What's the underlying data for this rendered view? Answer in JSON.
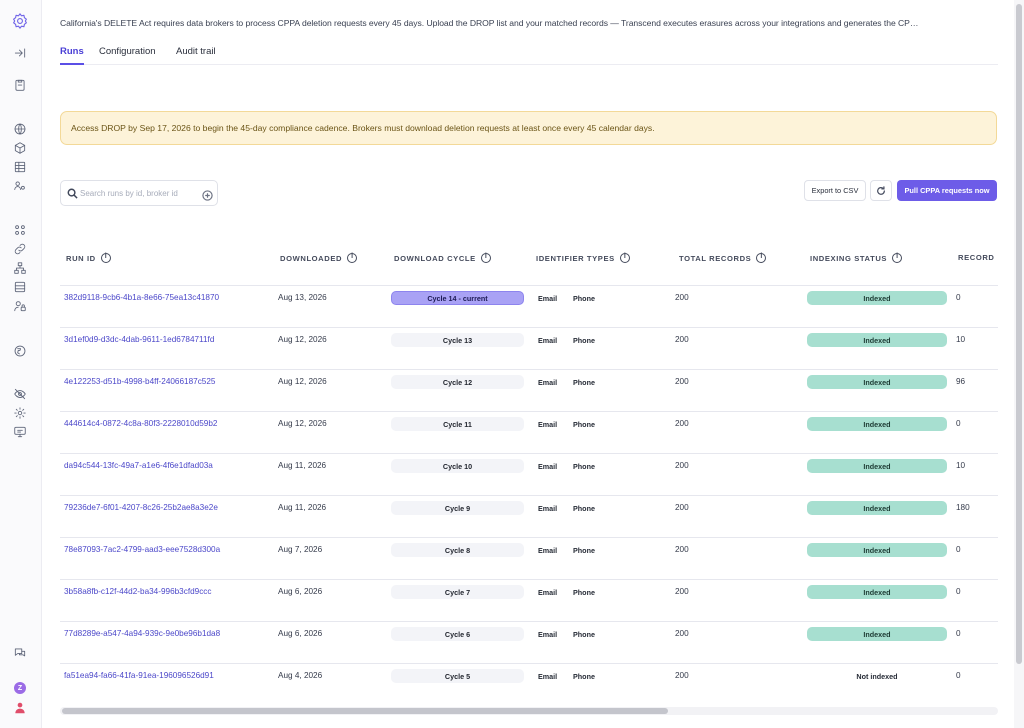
{
  "description": "California's DELETE Act requires data brokers to process CPPA deletion requests every 45 days. Upload the DROP list and your matched records — Transcend executes erasures across your integrations and generates the CP…",
  "tabs": [
    {
      "label": "Runs",
      "active": true
    },
    {
      "label": "Configuration",
      "active": false
    },
    {
      "label": "Audit trail",
      "active": false
    }
  ],
  "banner": "Access DROP by Sep 17, 2026 to begin the 45-day compliance cadence. Brokers must download deletion requests at least once every 45 calendar days.",
  "search": {
    "placeholder": "Search runs by id, broker id"
  },
  "actions": {
    "export_label": "Export to CSV",
    "pull_label": "Pull CPPA requests now"
  },
  "colors": {
    "accent": "#6d5ce8",
    "indexed": "#a7dfd0",
    "current_cycle": "#a9a2f5",
    "banner_bg": "#fdf3d9"
  },
  "sidebar_icons": [
    "settings-icon",
    "share-icon",
    "clipboard-icon",
    "globe-icon",
    "box-icon",
    "table-icon",
    "settings-people-icon",
    "grid-icon",
    "link-icon",
    "network-icon",
    "database-icon",
    "user-lock-icon",
    "globe-lock-icon",
    "eye-off-icon",
    "gear-icon",
    "monitor-icon",
    "chat-icon"
  ],
  "user_avatar": "Z",
  "table": {
    "columns": [
      "RUN ID",
      "DOWNLOADED",
      "DOWNLOAD CYCLE",
      "IDENTIFIER TYPES",
      "TOTAL RECORDS",
      "INDEXING STATUS",
      "RECORD"
    ],
    "rows": [
      {
        "id": "382d9118-9cb6-4b1a-8e66-75ea13c41870",
        "downloaded": "Aug 13, 2026",
        "cycle": "Cycle 14 - current",
        "current": true,
        "id_type_1": "Email",
        "id_type_2": "Phone",
        "total": "200",
        "status": "Indexed",
        "records": "0"
      },
      {
        "id": "3d1ef0d9-d3dc-4dab-9611-1ed6784711fd",
        "downloaded": "Aug 12, 2026",
        "cycle": "Cycle 13",
        "current": false,
        "id_type_1": "Email",
        "id_type_2": "Phone",
        "total": "200",
        "status": "Indexed",
        "records": "10"
      },
      {
        "id": "4e122253-d51b-4998-b4ff-24066187c525",
        "downloaded": "Aug 12, 2026",
        "cycle": "Cycle 12",
        "current": false,
        "id_type_1": "Email",
        "id_type_2": "Phone",
        "total": "200",
        "status": "Indexed",
        "records": "96"
      },
      {
        "id": "444614c4-0872-4c8a-80f3-2228010d59b2",
        "downloaded": "Aug 12, 2026",
        "cycle": "Cycle 11",
        "current": false,
        "id_type_1": "Email",
        "id_type_2": "Phone",
        "total": "200",
        "status": "Indexed",
        "records": "0"
      },
      {
        "id": "da94c544-13fc-49a7-a1e6-4f6e1dfad03a",
        "downloaded": "Aug 11, 2026",
        "cycle": "Cycle 10",
        "current": false,
        "id_type_1": "Email",
        "id_type_2": "Phone",
        "total": "200",
        "status": "Indexed",
        "records": "10"
      },
      {
        "id": "79236de7-6f01-4207-8c26-25b2ae8a3e2e",
        "downloaded": "Aug 11, 2026",
        "cycle": "Cycle 9",
        "current": false,
        "id_type_1": "Email",
        "id_type_2": "Phone",
        "total": "200",
        "status": "Indexed",
        "records": "180"
      },
      {
        "id": "78e87093-7ac2-4799-aad3-eee7528d300a",
        "downloaded": "Aug 7, 2026",
        "cycle": "Cycle 8",
        "current": false,
        "id_type_1": "Email",
        "id_type_2": "Phone",
        "total": "200",
        "status": "Indexed",
        "records": "0"
      },
      {
        "id": "3b58a8fb-c12f-44d2-ba34-996b3cfd9ccc",
        "downloaded": "Aug 6, 2026",
        "cycle": "Cycle 7",
        "current": false,
        "id_type_1": "Email",
        "id_type_2": "Phone",
        "total": "200",
        "status": "Indexed",
        "records": "0"
      },
      {
        "id": "77d8289e-a547-4a94-939c-9e0be96b1da8",
        "downloaded": "Aug 6, 2026",
        "cycle": "Cycle 6",
        "current": false,
        "id_type_1": "Email",
        "id_type_2": "Phone",
        "total": "200",
        "status": "Indexed",
        "records": "0"
      },
      {
        "id": "fa51ea94-fa66-41fa-91ea-196096526d91",
        "downloaded": "Aug 4, 2026",
        "cycle": "Cycle 5",
        "current": false,
        "id_type_1": "Email",
        "id_type_2": "Phone",
        "total": "200",
        "status": "Not indexed",
        "records": "0"
      }
    ]
  }
}
